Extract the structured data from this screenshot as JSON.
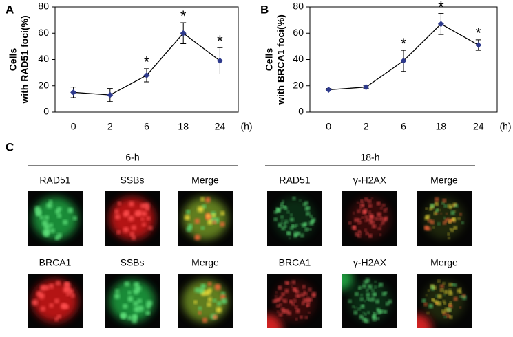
{
  "chart_data": [
    {
      "type": "line",
      "panel_label": "A",
      "y_label": [
        "Cells",
        "with RAD51 foci(%)"
      ],
      "x_unit": "(h)",
      "categories": [
        "0",
        "2",
        "6",
        "18",
        "24"
      ],
      "values": [
        15,
        13,
        28,
        60,
        39
      ],
      "errors": [
        4,
        5,
        5,
        8,
        10
      ],
      "color": "#2e3a8c",
      "ylim": [
        0,
        80
      ],
      "yticks": [
        0,
        20,
        40,
        60,
        80
      ],
      "annotations": [
        {
          "text": "*",
          "category": 2
        },
        {
          "text": "*",
          "category": 3
        },
        {
          "text": "*",
          "category": 4
        }
      ]
    },
    {
      "type": "line",
      "panel_label": "B",
      "y_label": [
        "Cells",
        "with BRCA1 foci(%)"
      ],
      "x_unit": "(h)",
      "categories": [
        "0",
        "2",
        "6",
        "18",
        "24"
      ],
      "values": [
        17,
        19,
        39,
        67,
        51
      ],
      "errors": [
        1,
        1,
        8,
        8,
        4
      ],
      "color": "#2e3a8c",
      "ylim": [
        0,
        80
      ],
      "yticks": [
        0,
        20,
        40,
        60,
        80
      ],
      "annotations": [
        {
          "text": "*",
          "category": 2
        },
        {
          "text": "*",
          "category": 3
        },
        {
          "text": "*",
          "category": 4
        }
      ]
    }
  ],
  "panel_c": {
    "label": "C",
    "groups": [
      {
        "title": "6-h",
        "rows": [
          [
            "RAD51",
            "SSBs",
            "Merge"
          ],
          [
            "BRCA1",
            "SSBs",
            "Merge"
          ]
        ]
      },
      {
        "title": "18-h",
        "rows": [
          [
            "RAD51",
            "γ-H2AX",
            "Merge"
          ],
          [
            "BRCA1",
            "γ-H2AX",
            "Merge"
          ]
        ]
      }
    ]
  }
}
